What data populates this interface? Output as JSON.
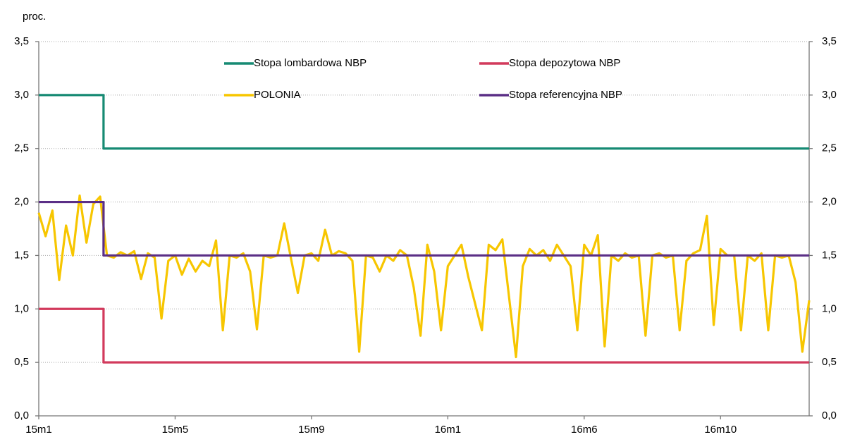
{
  "chart_data": {
    "type": "line",
    "ylabel": "proc.",
    "xlim": [
      0,
      113
    ],
    "xticks": [
      {
        "value": 0,
        "label": "15m1"
      },
      {
        "value": 20,
        "label": "15m5"
      },
      {
        "value": 40,
        "label": "15m9"
      },
      {
        "value": 60,
        "label": "16m1"
      },
      {
        "value": 80,
        "label": "16m6"
      },
      {
        "value": 100,
        "label": "16m10"
      }
    ],
    "ylim": [
      0,
      3.5
    ],
    "yticks": [
      {
        "value": 0,
        "label": "0,0"
      },
      {
        "value": 0.5,
        "label": "0,5"
      },
      {
        "value": 1,
        "label": "1,0"
      },
      {
        "value": 1.5,
        "label": "1,5"
      },
      {
        "value": 2,
        "label": "2,0"
      },
      {
        "value": 2.5,
        "label": "2,5"
      },
      {
        "value": 3,
        "label": "3,0"
      },
      {
        "value": 3.5,
        "label": "3,5"
      }
    ],
    "y2lim": [
      0,
      3.5
    ],
    "y2ticks": [
      {
        "value": 0,
        "label": "0,0"
      },
      {
        "value": 0.5,
        "label": "0,5"
      },
      {
        "value": 1,
        "label": "1,0"
      },
      {
        "value": 1.5,
        "label": "1,5"
      },
      {
        "value": 2,
        "label": "2,0"
      },
      {
        "value": 2.5,
        "label": "2,5"
      },
      {
        "value": 3,
        "label": "3,0"
      },
      {
        "value": 3.5,
        "label": "3,5"
      }
    ],
    "grid": true,
    "legend": "top",
    "series": [
      {
        "name": "Stopa lombardowa NBP",
        "color": "#168a73",
        "x": [
          0,
          9.5,
          9.5,
          113
        ],
        "values": [
          3,
          3,
          2.5,
          2.5
        ]
      },
      {
        "name": "Stopa depozytowa NBP",
        "color": "#d23a5c",
        "x": [
          0,
          9.5,
          9.5,
          113
        ],
        "values": [
          1,
          1,
          0.5,
          0.5
        ]
      },
      {
        "name": "POLONIA",
        "color": "#f7c600",
        "x": [
          0,
          1,
          2,
          3,
          4,
          5,
          6,
          7,
          8,
          9,
          10,
          11,
          12,
          13,
          14,
          15,
          16,
          17,
          18,
          19,
          20,
          21,
          22,
          23,
          24,
          25,
          26,
          27,
          28,
          29,
          30,
          31,
          32,
          33,
          34,
          35,
          36,
          37,
          38,
          39,
          40,
          41,
          42,
          43,
          44,
          45,
          46,
          47,
          48,
          49,
          50,
          51,
          52,
          53,
          54,
          55,
          56,
          57,
          58,
          59,
          60,
          61,
          62,
          63,
          64,
          65,
          66,
          67,
          68,
          69,
          70,
          71,
          72,
          73,
          74,
          75,
          76,
          77,
          78,
          79,
          80,
          81,
          82,
          83,
          84,
          85,
          86,
          87,
          88,
          89,
          90,
          91,
          92,
          93,
          94,
          95,
          96,
          97,
          98,
          99,
          100,
          101,
          102,
          103,
          104,
          105,
          106,
          107,
          108,
          109,
          110,
          111,
          112,
          113
        ],
        "values": [
          1.9,
          1.68,
          1.92,
          1.27,
          1.78,
          1.5,
          2.06,
          1.62,
          1.98,
          2.05,
          1.5,
          1.48,
          1.53,
          1.5,
          1.54,
          1.28,
          1.52,
          1.48,
          0.91,
          1.45,
          1.5,
          1.32,
          1.47,
          1.35,
          1.45,
          1.4,
          1.64,
          0.8,
          1.5,
          1.48,
          1.52,
          1.35,
          0.81,
          1.5,
          1.48,
          1.5,
          1.8,
          1.47,
          1.15,
          1.5,
          1.52,
          1.45,
          1.74,
          1.5,
          1.54,
          1.52,
          1.45,
          0.6,
          1.5,
          1.48,
          1.35,
          1.5,
          1.45,
          1.55,
          1.5,
          1.2,
          0.75,
          1.6,
          1.35,
          0.8,
          1.4,
          1.5,
          1.6,
          1.3,
          1.05,
          0.8,
          1.6,
          1.55,
          1.65,
          1.1,
          0.55,
          1.4,
          1.56,
          1.5,
          1.55,
          1.45,
          1.6,
          1.5,
          1.4,
          0.8,
          1.6,
          1.5,
          1.69,
          0.65,
          1.5,
          1.45,
          1.52,
          1.48,
          1.5,
          0.75,
          1.5,
          1.52,
          1.48,
          1.5,
          0.8,
          1.45,
          1.52,
          1.55,
          1.87,
          0.85,
          1.56,
          1.5,
          1.5,
          0.8,
          1.5,
          1.45,
          1.52,
          0.8,
          1.5,
          1.48,
          1.5,
          1.25,
          0.6,
          1.08
        ]
      },
      {
        "name": "Stopa referencyjna NBP",
        "color": "#5b2f86",
        "x": [
          0,
          9.5,
          9.5,
          113
        ],
        "values": [
          2,
          2,
          1.5,
          1.5
        ]
      }
    ]
  }
}
